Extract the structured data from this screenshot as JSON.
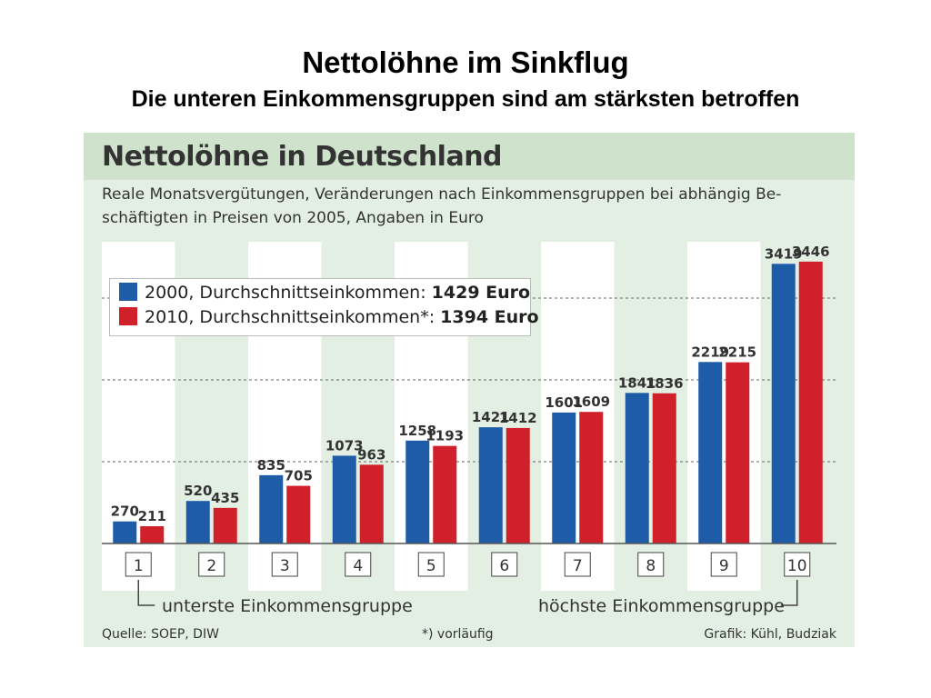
{
  "slide": {
    "title": "Nettolöhne im Sinkflug",
    "subtitle": "Die unteren Einkommensgruppen sind am stärksten betroffen"
  },
  "chart_data": {
    "type": "bar",
    "title": "Nettolöhne in Deutschland",
    "subtitle_line1": "Reale Monatsvergütungen, Veränderungen nach Einkommensgruppen bei abhängig Be-",
    "subtitle_line2": "schäftigten in Preisen von 2005, Angaben in Euro",
    "categories": [
      "1",
      "2",
      "3",
      "4",
      "5",
      "6",
      "7",
      "8",
      "9",
      "10"
    ],
    "series": [
      {
        "name": "2000",
        "legend_text": "2000, Durchschnittseinkommen:",
        "legend_value": "1429 Euro",
        "color": "#1f5ca8",
        "values": [
          270,
          520,
          835,
          1073,
          1258,
          1421,
          1601,
          1841,
          2219,
          3419
        ]
      },
      {
        "name": "2010",
        "legend_text": "2010, Durchschnittseinkommen*:",
        "legend_value": "1394 Euro",
        "color": "#d0202a",
        "values": [
          211,
          435,
          705,
          963,
          1193,
          1412,
          1609,
          1836,
          2215,
          3446
        ]
      }
    ],
    "ylim": [
      0,
      3800
    ],
    "grid": true,
    "x_label_left": "unterste Einkommensgruppe",
    "x_label_right": "höchste Einkommensgruppe",
    "source": "Quelle: SOEP, DIW",
    "note": "*) vorläufig",
    "credit": "Grafik: Kühl, Budziak"
  }
}
